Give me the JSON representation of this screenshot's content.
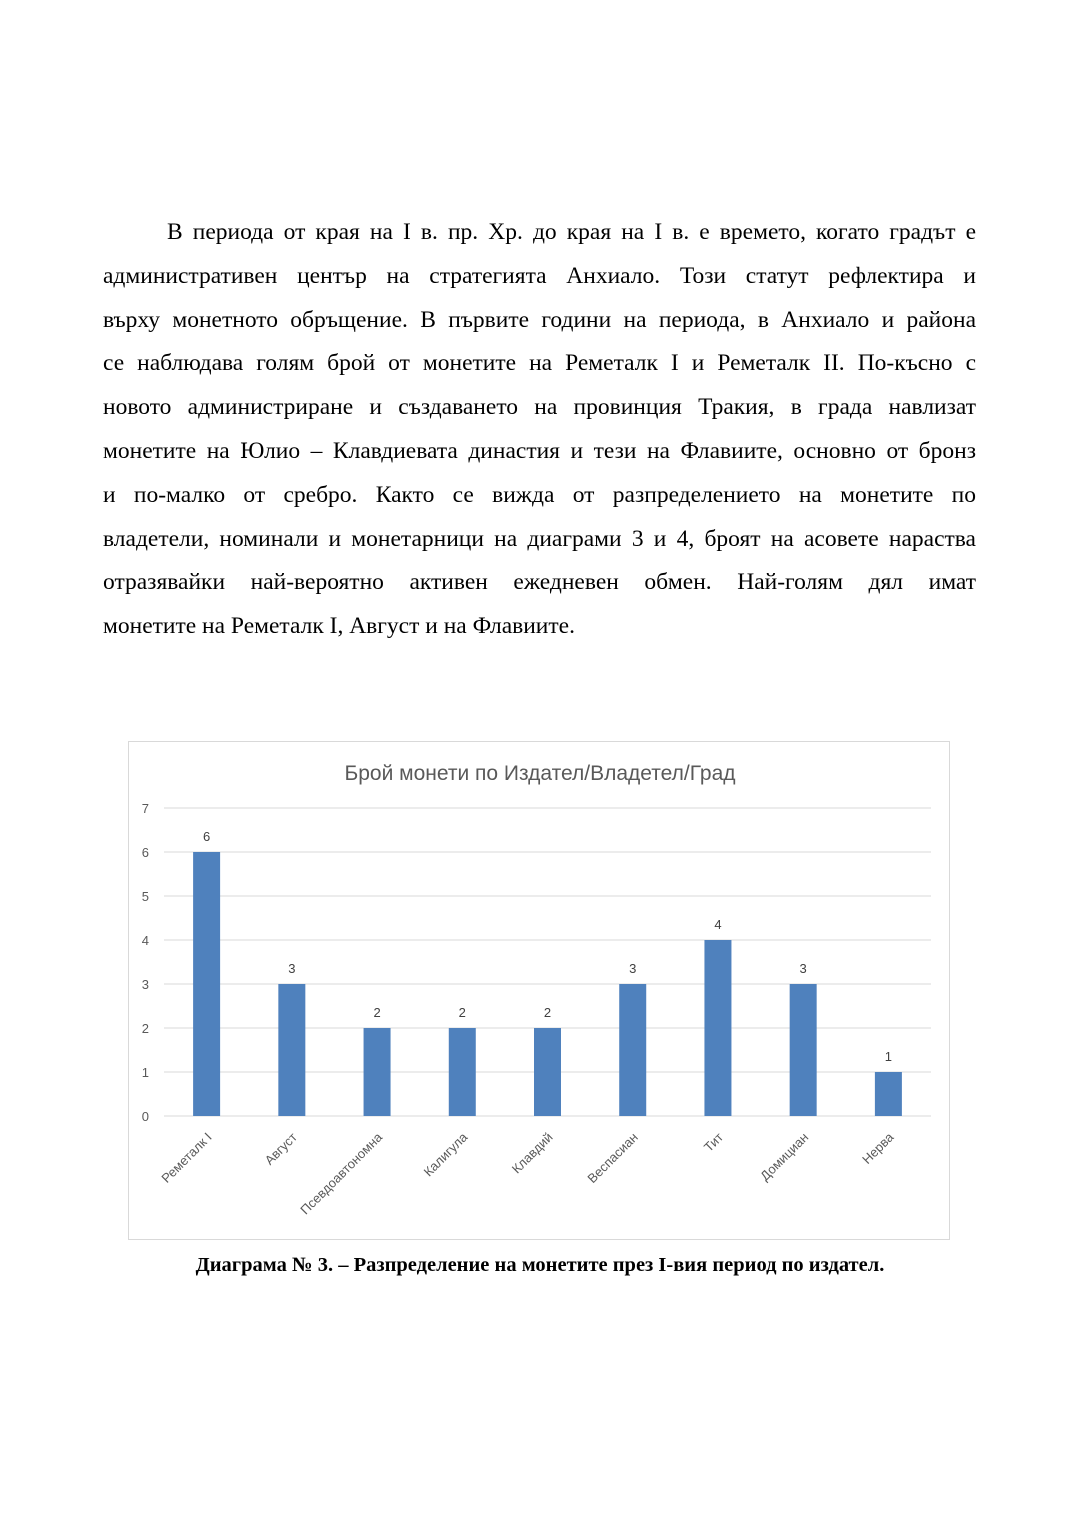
{
  "paragraph": {
    "lines": [
      "В периода от края на I в. пр. Хр. до края на I в. е времето, когато градът е",
      "административен център на стратегията Анхиало. Този статут рефлектира и",
      "върху монетното обръщение. В първите години на периода, в Анхиало и района",
      "се наблюдава голям брой от монетите на Реметалк I и Реметалк II. По-късно с",
      "новото администриране и създаването на провинция Тракия, в града навлизат",
      "монетите на Юлио – Клавдиевата династия и тези на Флавиите, основно от бронз",
      "и по-малко от сребро. Както се вижда от разпределението на монетите по",
      "владетели, номинали и монетарници на диаграми 3 и 4, броят на асовете нараства",
      "отразявайки най-вероятно активен ежедневен обмен. Най-голям дял имат",
      "монетите на Реметалк I, Август и на Флавиите."
    ]
  },
  "chart_data": {
    "type": "bar",
    "title": "Брой монети по Издател/Владетел/Град",
    "categories": [
      "Реметалк I",
      "Август",
      "Псевдоавтономна",
      "Калигула",
      "Клавдий",
      "Веспасиан",
      "Тит",
      "Домициан",
      "Нерва"
    ],
    "values": [
      6,
      3,
      2,
      2,
      2,
      3,
      4,
      3,
      1
    ],
    "data_labels": [
      "6",
      "3",
      "2",
      "2",
      "2",
      "3",
      "4",
      "3",
      "1"
    ],
    "ylim": [
      0,
      7
    ],
    "yticks": [
      "0",
      "1",
      "2",
      "3",
      "4",
      "5",
      "6",
      "7"
    ],
    "grid": true,
    "legend": "none",
    "bar_color": "#4f81bd"
  },
  "caption": "Диаграма № 3. – Разпределение на монетите през I-вия период по издател."
}
